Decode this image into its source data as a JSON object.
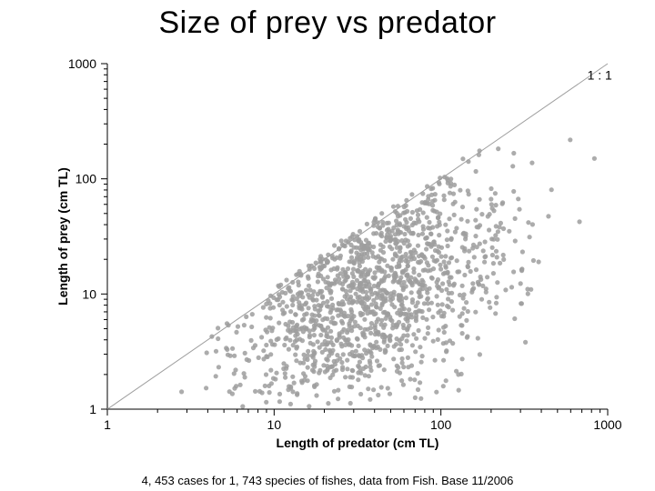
{
  "title": "Size of prey vs predator",
  "caption": "4, 453 cases for 1, 743 species of fishes, data from Fish. Base 11/2006",
  "chart": {
    "type": "scatter",
    "xlabel": "Length of predator (cm TL)",
    "ylabel": "Length of prey (cm TL)",
    "scale": "log",
    "xlim": [
      1,
      1000
    ],
    "ylim": [
      1,
      1000
    ],
    "xticks": [
      1,
      10,
      100,
      1000
    ],
    "yticks": [
      1,
      10,
      100,
      1000
    ],
    "diag_label": "1 : 1",
    "background_color": "#ffffff",
    "axis_color": "#000000",
    "point_color": "#9e9e9e",
    "point_radius": 2.6,
    "point_opacity": 0.85,
    "diag_color": "#9e9e9e",
    "label_fontsize": 14,
    "tick_fontsize": 14,
    "n_points": 1400,
    "cluster": {
      "x_mu_log10": 1.55,
      "x_sigma_log10": 0.42,
      "y_mu_log10": 1.05,
      "y_sigma_log10": 0.52,
      "rho": 0.35
    },
    "max_ratio_prey_over_pred": 1.0
  }
}
